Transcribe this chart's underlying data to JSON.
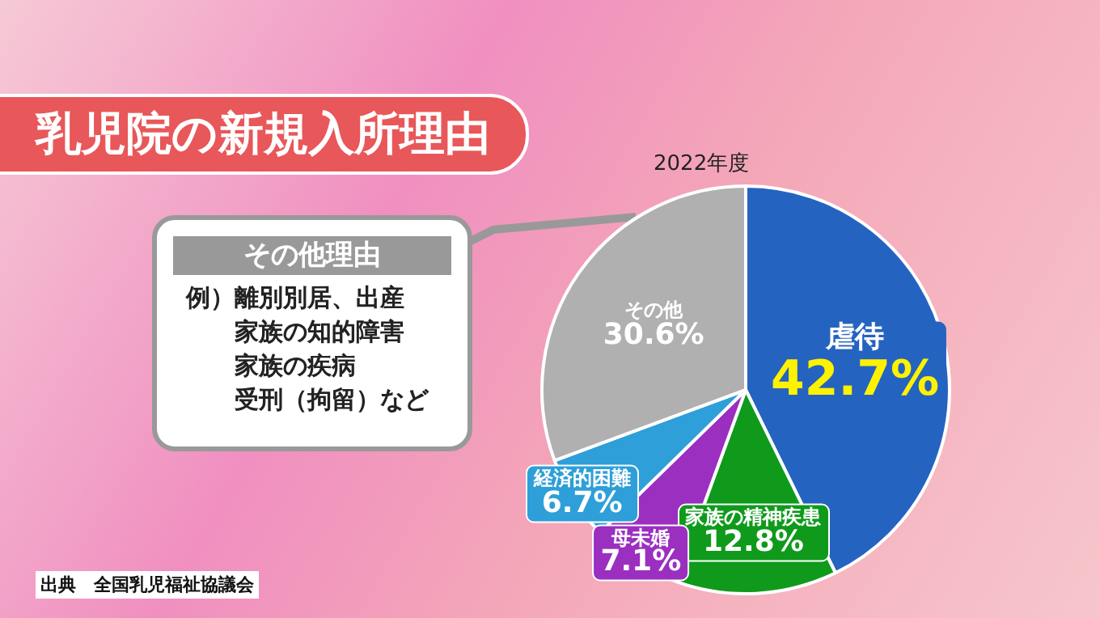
{
  "chart_data": {
    "type": "pie",
    "title": "乳児院の新規入所理由",
    "categories": [
      "虐待",
      "家族の精神疾患",
      "母未婚",
      "経済的困難",
      "その他"
    ],
    "values": [
      42.7,
      12.8,
      7.1,
      6.7,
      30.6
    ],
    "value_labels": [
      "42.7%",
      "12.8%",
      "7.1%",
      "6.7%",
      "30.6%"
    ],
    "colors": [
      "#2563c0",
      "#0f9a1c",
      "#9b2fc0",
      "#2e9fd8",
      "#b0b0b0"
    ],
    "annotations": [
      "2022年度",
      "その他理由",
      "例）離別別居、出産",
      "家族の知的障害",
      "家族の疾病",
      "受刑（拘留）など",
      "出典　全国乳児福祉協議会"
    ],
    "legend": false
  }
}
